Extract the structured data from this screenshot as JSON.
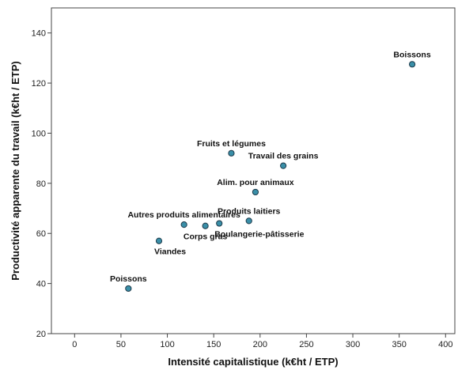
{
  "chart_data": {
    "type": "scatter",
    "title": "",
    "xlabel": "Intensité capitalistique (k€ht / ETP)",
    "ylabel": "Productivité apparente du travail (k€ht / ETP)",
    "xlim": [
      -25,
      410
    ],
    "ylim": [
      20,
      150
    ],
    "x_ticks": [
      0,
      50,
      100,
      150,
      200,
      250,
      300,
      350,
      400
    ],
    "y_ticks": [
      20,
      40,
      60,
      80,
      100,
      120,
      140
    ],
    "grid": false,
    "point_color": "#3a8fa8",
    "points": [
      {
        "label": "Boissons",
        "x": 364,
        "y": 127.5,
        "label_pos": "above"
      },
      {
        "label": "Fruits et légumes",
        "x": 169,
        "y": 92,
        "label_pos": "above"
      },
      {
        "label": "Travail des grains",
        "x": 225,
        "y": 87,
        "label_pos": "above-right"
      },
      {
        "label": "Alim. pour animaux",
        "x": 195,
        "y": 76.5,
        "label_pos": "above"
      },
      {
        "label": "Produits laitiers",
        "x": 188,
        "y": 65,
        "label_pos": "above"
      },
      {
        "label": "Boulangerie-pâtisserie",
        "x": 156,
        "y": 64,
        "label_pos": "below-right"
      },
      {
        "label": "Corps gras",
        "x": 141,
        "y": 63,
        "label_pos": "below"
      },
      {
        "label": "Autres produits alimentaires",
        "x": 118,
        "y": 63.5,
        "label_pos": "above"
      },
      {
        "label": "Viandes",
        "x": 91,
        "y": 57,
        "label_pos": "below-right"
      },
      {
        "label": "Poissons",
        "x": 58,
        "y": 38,
        "label_pos": "above"
      }
    ]
  }
}
